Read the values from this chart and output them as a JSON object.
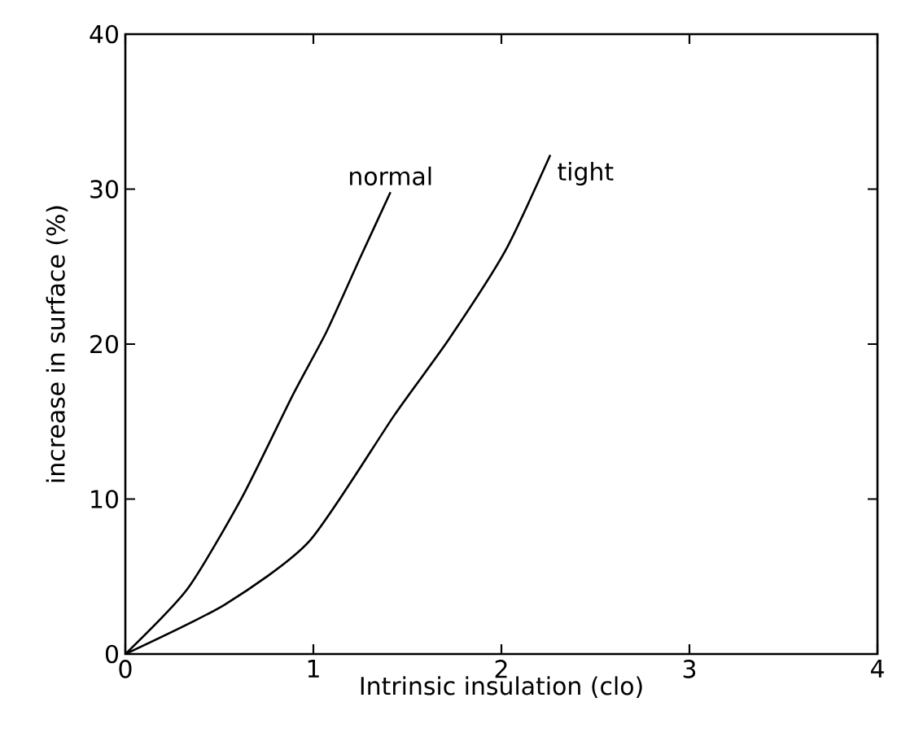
{
  "chart_data": {
    "type": "line",
    "xlabel": "Intrinsic insulation (clo)",
    "ylabel": "increase in surface (%)",
    "xlim": [
      0,
      4
    ],
    "ylim": [
      0,
      40
    ],
    "xticks": [
      0,
      1,
      2,
      3,
      4
    ],
    "yticks": [
      0,
      10,
      20,
      30,
      40
    ],
    "grid": false,
    "legend": false,
    "marker": "none",
    "line_style": "solid",
    "series": [
      {
        "name": "normal",
        "color": "#000000",
        "x": [
          0,
          0.33,
          0.62,
          0.89,
          1.07,
          1.25,
          1.41
        ],
        "values": [
          0,
          4.2,
          10.1,
          16.7,
          20.8,
          25.6,
          29.8
        ]
      },
      {
        "name": "tight",
        "color": "#000000",
        "x": [
          0,
          0.53,
          0.98,
          1.43,
          1.72,
          2.02,
          2.26
        ],
        "values": [
          0,
          3.2,
          7.3,
          15.4,
          20.3,
          26.0,
          32.2
        ]
      }
    ]
  }
}
